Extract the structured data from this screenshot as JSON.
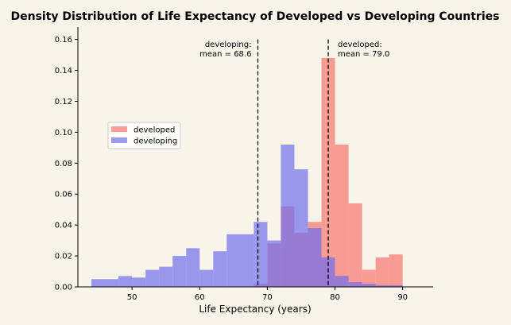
{
  "chart_data": {
    "type": "histogram",
    "title": "Density Distribution of Life Expectancy of Developed vs Developing Countries",
    "xlabel": "Life Expectancy (years)",
    "ylabel": "",
    "xlim": [
      42,
      94.5
    ],
    "ylim": [
      0,
      0.168
    ],
    "xticks": [
      50,
      60,
      70,
      80,
      90
    ],
    "yticks": [
      0.0,
      0.02,
      0.04,
      0.06,
      0.08,
      0.1,
      0.12,
      0.14,
      0.16
    ],
    "legend": {
      "placement": "center-left",
      "entries": [
        "developed",
        "developing"
      ]
    },
    "series": [
      {
        "name": "developed",
        "color": "#f8766d",
        "opacity": 0.7,
        "bins": [
          {
            "x0": 68.0,
            "x1": 70.0,
            "density": 0.002
          },
          {
            "x0": 70.0,
            "x1": 72.0,
            "density": 0.028
          },
          {
            "x0": 72.0,
            "x1": 74.0,
            "density": 0.052
          },
          {
            "x0": 74.0,
            "x1": 76.0,
            "density": 0.035
          },
          {
            "x0": 76.0,
            "x1": 78.0,
            "density": 0.042
          },
          {
            "x0": 78.0,
            "x1": 80.0,
            "density": 0.148
          },
          {
            "x0": 80.0,
            "x1": 82.0,
            "density": 0.092
          },
          {
            "x0": 82.0,
            "x1": 84.0,
            "density": 0.054
          },
          {
            "x0": 84.0,
            "x1": 86.0,
            "density": 0.011
          },
          {
            "x0": 86.0,
            "x1": 88.0,
            "density": 0.019
          },
          {
            "x0": 88.0,
            "x1": 90.0,
            "density": 0.021
          }
        ]
      },
      {
        "name": "developing",
        "color": "#6f6ff0",
        "opacity": 0.7,
        "bins": [
          {
            "x0": 44.0,
            "x1": 48.0,
            "density": 0.005
          },
          {
            "x0": 48.0,
            "x1": 50.0,
            "density": 0.007
          },
          {
            "x0": 50.0,
            "x1": 52.0,
            "density": 0.006
          },
          {
            "x0": 52.0,
            "x1": 54.0,
            "density": 0.011
          },
          {
            "x0": 54.0,
            "x1": 56.0,
            "density": 0.013
          },
          {
            "x0": 56.0,
            "x1": 58.0,
            "density": 0.02
          },
          {
            "x0": 58.0,
            "x1": 60.0,
            "density": 0.025
          },
          {
            "x0": 60.0,
            "x1": 62.0,
            "density": 0.011
          },
          {
            "x0": 62.0,
            "x1": 64.0,
            "density": 0.023
          },
          {
            "x0": 64.0,
            "x1": 68.0,
            "density": 0.034
          },
          {
            "x0": 68.0,
            "x1": 70.0,
            "density": 0.042
          },
          {
            "x0": 70.0,
            "x1": 72.0,
            "density": 0.03
          },
          {
            "x0": 72.0,
            "x1": 74.0,
            "density": 0.092
          },
          {
            "x0": 74.0,
            "x1": 76.0,
            "density": 0.076
          },
          {
            "x0": 76.0,
            "x1": 78.0,
            "density": 0.038
          },
          {
            "x0": 78.0,
            "x1": 80.0,
            "density": 0.019
          },
          {
            "x0": 80.0,
            "x1": 82.0,
            "density": 0.007
          },
          {
            "x0": 82.0,
            "x1": 84.0,
            "density": 0.003
          },
          {
            "x0": 84.0,
            "x1": 86.0,
            "density": 0.002
          },
          {
            "x0": 86.0,
            "x1": 90.0,
            "density": 0.001
          }
        ]
      }
    ],
    "annotations": [
      {
        "series": "developing",
        "x": 68.6,
        "line1": "developing:",
        "line2": "mean = 68.6",
        "align": "end"
      },
      {
        "series": "developed",
        "x": 79.0,
        "line1": "developed:",
        "line2": "mean = 79.0",
        "align": "start"
      }
    ]
  }
}
